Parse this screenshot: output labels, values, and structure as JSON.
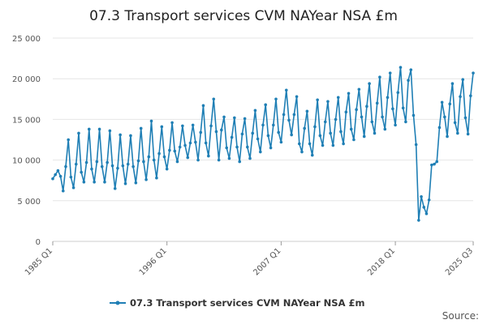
{
  "chart_data": {
    "type": "line",
    "title": "07.3 Transport services CVM NAYear NSA £m",
    "xlabel": "",
    "ylabel": "",
    "ylim": [
      0,
      25000
    ],
    "yticks": [
      0,
      5000,
      10000,
      15000,
      20000,
      25000
    ],
    "ytick_labels": [
      "0",
      "5 000",
      "10 000",
      "15 000",
      "20 000",
      "25 000"
    ],
    "xtick_labels": [
      {
        "index": 0,
        "label": "1985 Q1"
      },
      {
        "index": 44,
        "label": "1996 Q1"
      },
      {
        "index": 88,
        "label": "2007 Q1"
      },
      {
        "index": 132,
        "label": "2018 Q1"
      },
      {
        "index": 162,
        "label": "2025 Q3"
      }
    ],
    "series": [
      {
        "name": "07.3 Transport services CVM NAYear NSA £m",
        "color": "#1f7fb5",
        "start": "1985 Q1",
        "end": "2025 Q3",
        "values": [
          7700,
          8200,
          8700,
          8000,
          6200,
          9200,
          12500,
          7900,
          6600,
          9500,
          13300,
          8500,
          7300,
          9700,
          13800,
          8900,
          7300,
          9800,
          13800,
          9200,
          7300,
          9700,
          13600,
          9300,
          6500,
          9000,
          13100,
          9300,
          7100,
          9500,
          13000,
          9200,
          7200,
          9900,
          13900,
          9800,
          7600,
          10400,
          14800,
          10000,
          7800,
          10800,
          14100,
          10400,
          8900,
          11200,
          14600,
          11100,
          9800,
          11600,
          14200,
          11800,
          10300,
          12100,
          14300,
          12200,
          10000,
          13400,
          16700,
          12100,
          10500,
          14200,
          17500,
          13500,
          10000,
          13700,
          15300,
          11500,
          10200,
          12800,
          15200,
          11600,
          9800,
          13200,
          15100,
          11600,
          10200,
          13300,
          16100,
          12600,
          11000,
          14300,
          16800,
          13000,
          11500,
          14300,
          17500,
          13400,
          12200,
          15600,
          18600,
          14900,
          13100,
          15600,
          17800,
          12000,
          11000,
          13900,
          16000,
          12000,
          10600,
          14100,
          17400,
          13000,
          11800,
          14700,
          17200,
          13300,
          11800,
          15000,
          17700,
          13500,
          12000,
          15900,
          18200,
          13800,
          12500,
          16200,
          18700,
          15300,
          12900,
          16600,
          19400,
          14700,
          13300,
          17000,
          20200,
          15300,
          13800,
          17700,
          20700,
          16300,
          14300,
          18300,
          21400,
          16400,
          14700,
          19800,
          21100,
          15500,
          11900,
          2600,
          5500,
          4200,
          3400,
          5100,
          9400,
          9500,
          9800,
          14000,
          17100,
          15300,
          12900,
          16900,
          19400,
          14600,
          13300,
          17800,
          19900,
          15200,
          13200,
          17900,
          20700
        ]
      }
    ],
    "legend": "bottom",
    "source_label": "Source:"
  }
}
